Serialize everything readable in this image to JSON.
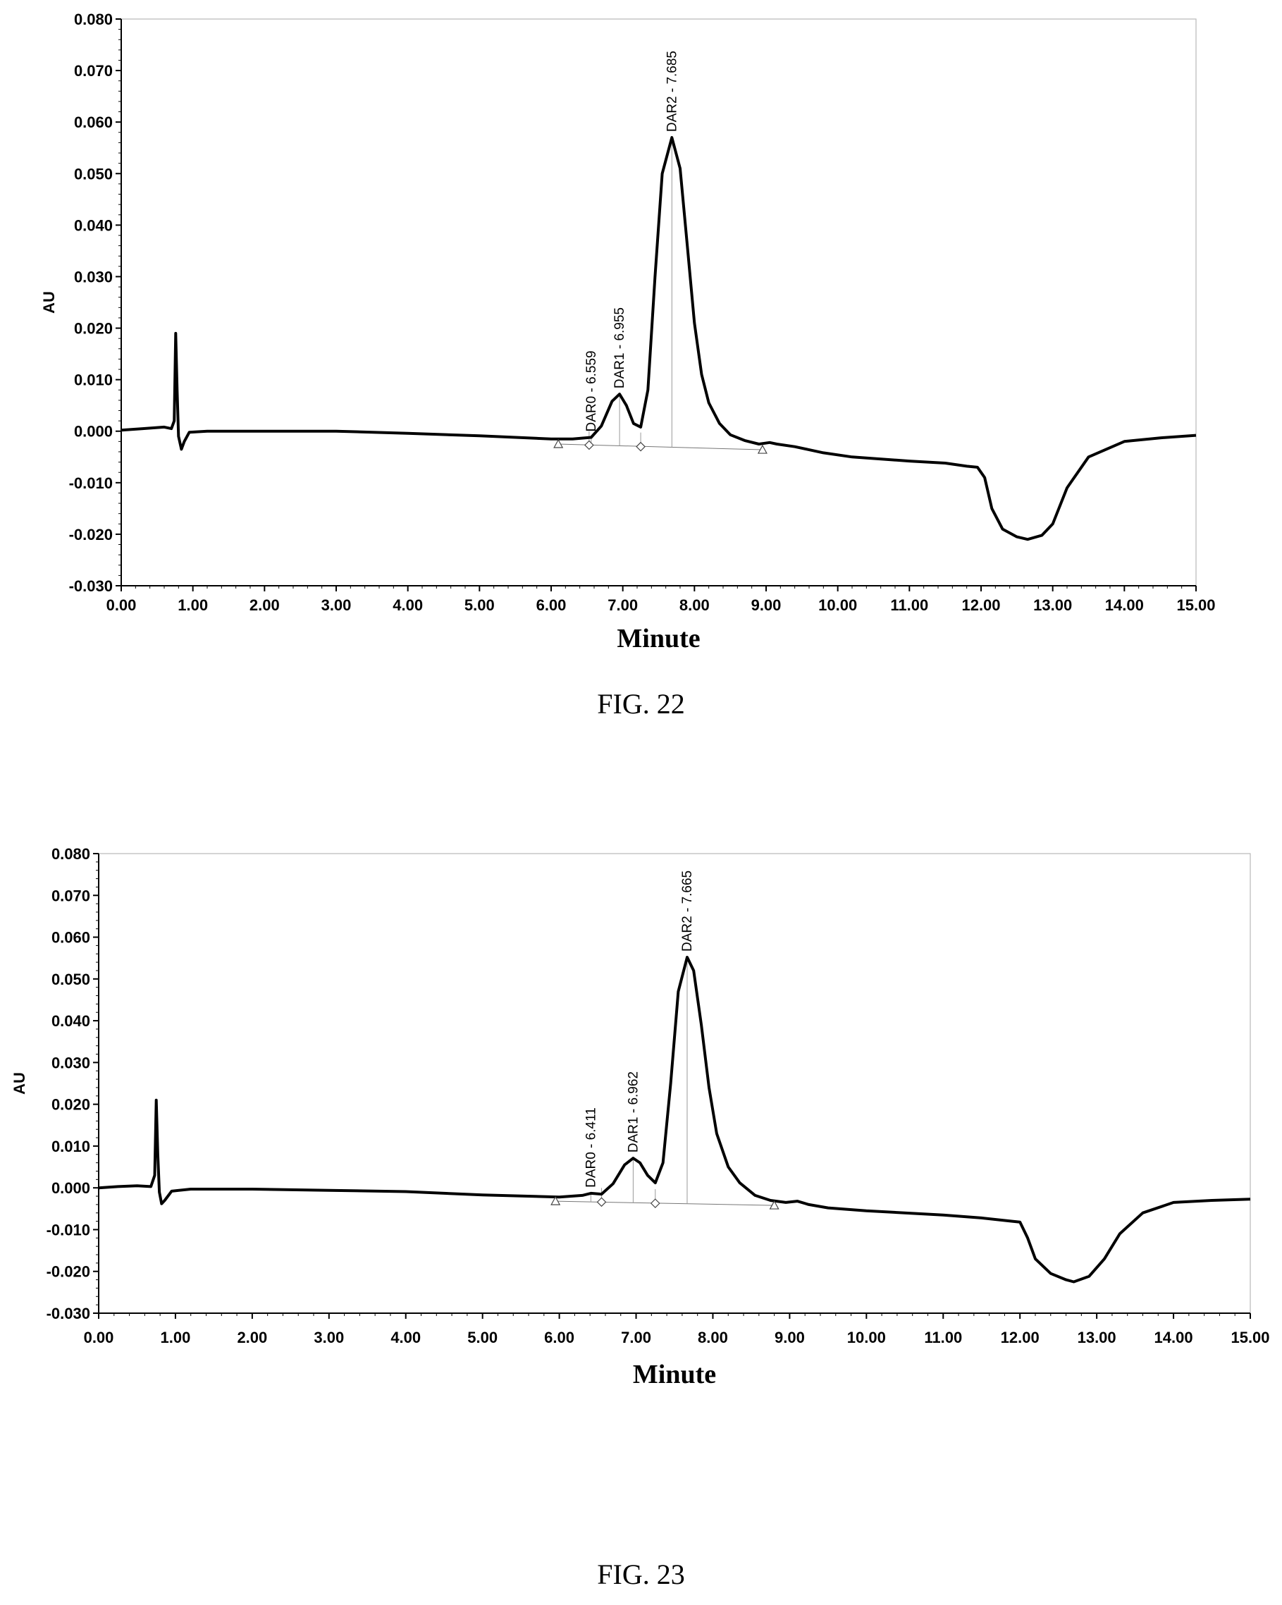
{
  "figures": [
    {
      "caption": "FIG. 22",
      "chart_data": {
        "type": "line",
        "xlabel": "Minute",
        "ylabel": "AU",
        "xlim": [
          0,
          15
        ],
        "ylim": [
          -0.03,
          0.08
        ],
        "grid": false,
        "x_ticks": [
          "0.00",
          "1.00",
          "2.00",
          "3.00",
          "4.00",
          "5.00",
          "6.00",
          "7.00",
          "8.00",
          "9.00",
          "10.00",
          "11.00",
          "12.00",
          "13.00",
          "14.00",
          "15.00"
        ],
        "y_ticks": [
          "0.080",
          "0.070",
          "0.060",
          "0.050",
          "0.040",
          "0.030",
          "0.020",
          "0.010",
          "0.000",
          "-0.010",
          "-0.020",
          "-0.030"
        ],
        "series": [
          {
            "values": [
              [
                0.0,
                0.0002
              ],
              [
                0.3,
                0.0005
              ],
              [
                0.6,
                0.0008
              ],
              [
                0.7,
                0.0005
              ],
              [
                0.74,
                0.002
              ],
              [
                0.76,
                0.019
              ],
              [
                0.78,
                0.008
              ],
              [
                0.8,
                -0.001
              ],
              [
                0.84,
                -0.0035
              ],
              [
                0.88,
                -0.002
              ],
              [
                0.95,
                -0.0002
              ],
              [
                1.2,
                0.0
              ],
              [
                2.0,
                0.0
              ],
              [
                3.0,
                0.0
              ],
              [
                4.0,
                -0.0004
              ],
              [
                5.0,
                -0.0009
              ],
              [
                6.0,
                -0.0015
              ],
              [
                6.3,
                -0.0015
              ],
              [
                6.559,
                -0.0012
              ],
              [
                6.7,
                0.001
              ],
              [
                6.85,
                0.0058
              ],
              [
                6.955,
                0.0072
              ],
              [
                7.05,
                0.005
              ],
              [
                7.15,
                0.0015
              ],
              [
                7.25,
                0.0008
              ],
              [
                7.35,
                0.008
              ],
              [
                7.45,
                0.03
              ],
              [
                7.55,
                0.05
              ],
              [
                7.685,
                0.057
              ],
              [
                7.8,
                0.051
              ],
              [
                7.9,
                0.036
              ],
              [
                8.0,
                0.021
              ],
              [
                8.1,
                0.011
              ],
              [
                8.2,
                0.0055
              ],
              [
                8.35,
                0.0015
              ],
              [
                8.5,
                -0.0007
              ],
              [
                8.7,
                -0.0018
              ],
              [
                8.9,
                -0.0025
              ],
              [
                9.05,
                -0.0022
              ],
              [
                9.15,
                -0.0025
              ],
              [
                9.4,
                -0.003
              ],
              [
                9.8,
                -0.0042
              ],
              [
                10.2,
                -0.005
              ],
              [
                11.0,
                -0.0058
              ],
              [
                11.5,
                -0.0062
              ],
              [
                11.8,
                -0.0068
              ],
              [
                11.95,
                -0.007
              ],
              [
                12.05,
                -0.009
              ],
              [
                12.15,
                -0.015
              ],
              [
                12.3,
                -0.019
              ],
              [
                12.5,
                -0.0205
              ],
              [
                12.65,
                -0.021
              ],
              [
                12.85,
                -0.0202
              ],
              [
                13.0,
                -0.018
              ],
              [
                13.2,
                -0.011
              ],
              [
                13.5,
                -0.005
              ],
              [
                14.0,
                -0.002
              ],
              [
                14.5,
                -0.0013
              ],
              [
                15.0,
                -0.0008
              ]
            ]
          }
        ],
        "baseline": [
          [
            6.1,
            -0.0025
          ],
          [
            8.95,
            -0.0036
          ]
        ],
        "markers": [
          {
            "shape": "triangle",
            "x": 6.1,
            "y": -0.0025
          },
          {
            "shape": "diamond",
            "x": 6.53,
            "y": -0.0027
          },
          {
            "shape": "diamond",
            "x": 7.25,
            "y": -0.003
          },
          {
            "shape": "triangle",
            "x": 8.95,
            "y": -0.0036
          }
        ],
        "annotations": [
          {
            "text": "DAR0 - 6.559",
            "x": 6.559,
            "y": -0.0012
          },
          {
            "text": "DAR1 - 6.955",
            "x": 6.955,
            "y": 0.0072
          },
          {
            "text": "DAR2 - 7.685",
            "x": 7.685,
            "y": 0.057
          }
        ]
      }
    },
    {
      "caption": "FIG. 23",
      "chart_data": {
        "type": "line",
        "xlabel": "Minute",
        "ylabel": "AU",
        "xlim": [
          0,
          15
        ],
        "ylim": [
          -0.03,
          0.08
        ],
        "grid": false,
        "x_ticks": [
          "0.00",
          "1.00",
          "2.00",
          "3.00",
          "4.00",
          "5.00",
          "6.00",
          "7.00",
          "8.00",
          "9.00",
          "10.00",
          "11.00",
          "12.00",
          "13.00",
          "14.00",
          "15.00"
        ],
        "y_ticks": [
          "0.080",
          "0.070",
          "0.060",
          "0.050",
          "0.040",
          "0.030",
          "0.020",
          "0.010",
          "0.000",
          "-0.010",
          "-0.020",
          "-0.030"
        ],
        "series": [
          {
            "values": [
              [
                0.0,
                0.0
              ],
              [
                0.25,
                0.0003
              ],
              [
                0.5,
                0.0005
              ],
              [
                0.68,
                0.0003
              ],
              [
                0.73,
                0.003
              ],
              [
                0.75,
                0.021
              ],
              [
                0.77,
                0.008
              ],
              [
                0.79,
                -0.001
              ],
              [
                0.82,
                -0.0038
              ],
              [
                0.86,
                -0.003
              ],
              [
                0.95,
                -0.0008
              ],
              [
                1.2,
                -0.0003
              ],
              [
                2.0,
                -0.0003
              ],
              [
                3.0,
                -0.0006
              ],
              [
                4.0,
                -0.0009
              ],
              [
                5.0,
                -0.0017
              ],
              [
                6.0,
                -0.0022
              ],
              [
                6.3,
                -0.0018
              ],
              [
                6.411,
                -0.0013
              ],
              [
                6.55,
                -0.0015
              ],
              [
                6.7,
                0.001
              ],
              [
                6.85,
                0.0055
              ],
              [
                6.962,
                0.0071
              ],
              [
                7.05,
                0.006
              ],
              [
                7.15,
                0.003
              ],
              [
                7.25,
                0.0012
              ],
              [
                7.35,
                0.006
              ],
              [
                7.45,
                0.025
              ],
              [
                7.55,
                0.047
              ],
              [
                7.665,
                0.0552
              ],
              [
                7.75,
                0.052
              ],
              [
                7.85,
                0.039
              ],
              [
                7.95,
                0.024
              ],
              [
                8.05,
                0.013
              ],
              [
                8.2,
                0.005
              ],
              [
                8.35,
                0.0012
              ],
              [
                8.55,
                -0.0018
              ],
              [
                8.75,
                -0.003
              ],
              [
                8.95,
                -0.0035
              ],
              [
                9.1,
                -0.0032
              ],
              [
                9.25,
                -0.004
              ],
              [
                9.5,
                -0.0048
              ],
              [
                10.0,
                -0.0055
              ],
              [
                11.0,
                -0.0065
              ],
              [
                11.5,
                -0.0072
              ],
              [
                11.9,
                -0.008
              ],
              [
                12.0,
                -0.0082
              ],
              [
                12.1,
                -0.012
              ],
              [
                12.2,
                -0.017
              ],
              [
                12.4,
                -0.0205
              ],
              [
                12.6,
                -0.022
              ],
              [
                12.7,
                -0.0225
              ],
              [
                12.9,
                -0.0212
              ],
              [
                13.1,
                -0.017
              ],
              [
                13.3,
                -0.011
              ],
              [
                13.6,
                -0.006
              ],
              [
                14.0,
                -0.0035
              ],
              [
                14.5,
                -0.003
              ],
              [
                15.0,
                -0.0027
              ]
            ]
          }
        ],
        "baseline": [
          [
            5.95,
            -0.0032
          ],
          [
            8.8,
            -0.0042
          ]
        ],
        "markers": [
          {
            "shape": "triangle",
            "x": 5.95,
            "y": -0.0032
          },
          {
            "shape": "diamond",
            "x": 6.55,
            "y": -0.0034
          },
          {
            "shape": "diamond",
            "x": 7.25,
            "y": -0.0037
          },
          {
            "shape": "triangle",
            "x": 8.8,
            "y": -0.0042
          }
        ],
        "annotations": [
          {
            "text": "DAR0 - 6.411",
            "x": 6.411,
            "y": -0.0013
          },
          {
            "text": "DAR1 - 6.962",
            "x": 6.962,
            "y": 0.0071
          },
          {
            "text": "DAR2 - 7.665",
            "x": 7.665,
            "y": 0.0552
          }
        ]
      }
    }
  ]
}
